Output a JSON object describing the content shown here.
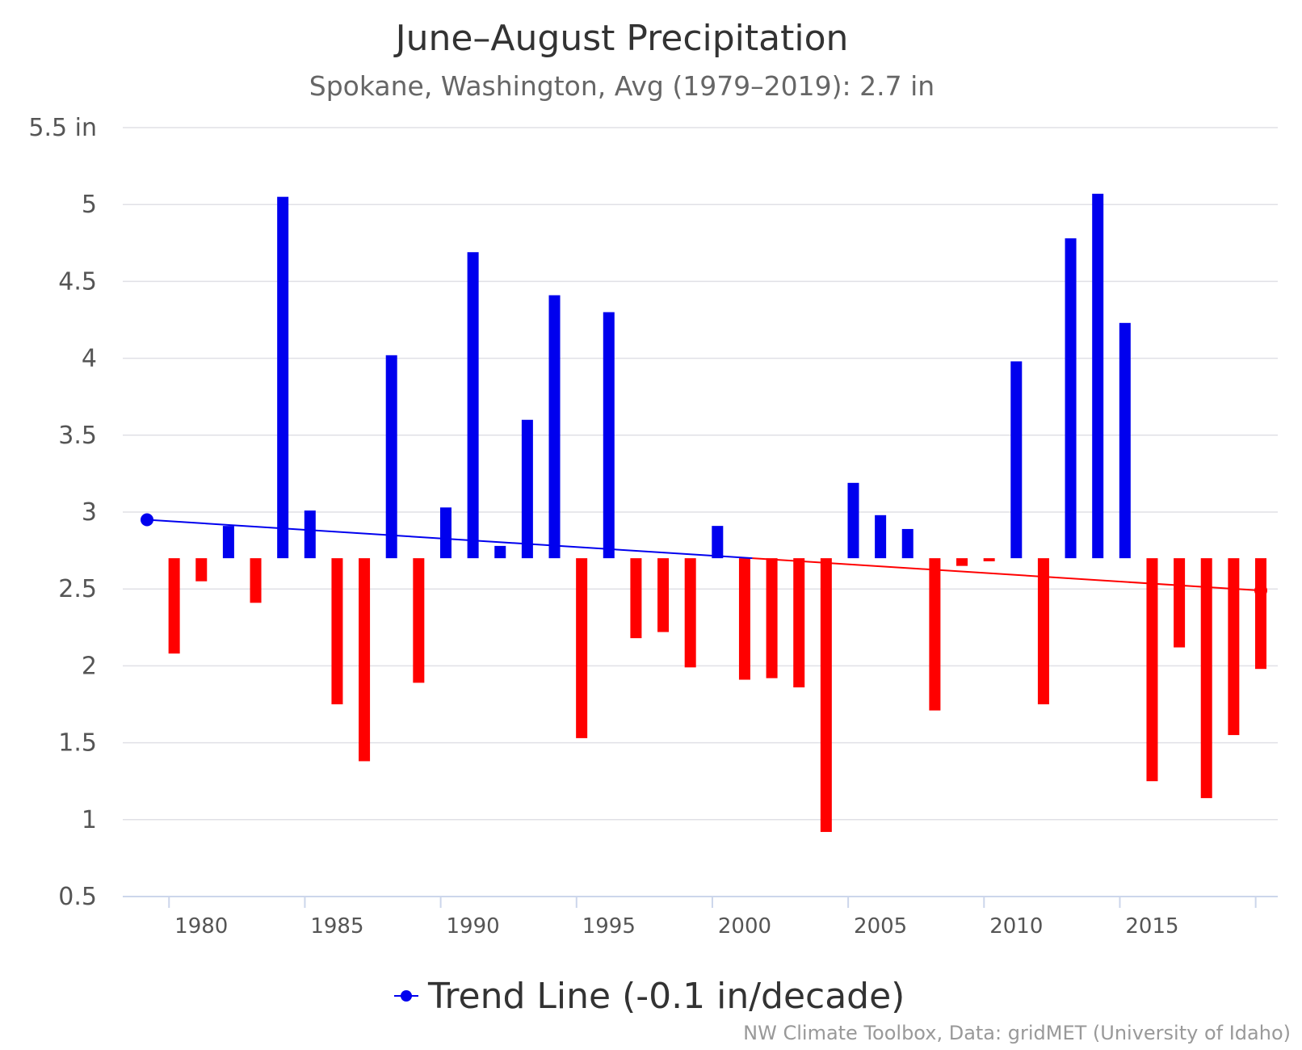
{
  "chart_data": {
    "type": "bar",
    "title": "June–August Precipitation",
    "subtitle": "Spokane, Washington, Avg (1979–2019): 2.7 in",
    "baseline": 2.7,
    "ylim": [
      0.5,
      5.5
    ],
    "yticks": [
      {
        "value": 5.5,
        "label": "5.5 in"
      },
      {
        "value": 5,
        "label": "5"
      },
      {
        "value": 4.5,
        "label": "4.5"
      },
      {
        "value": 4,
        "label": "4"
      },
      {
        "value": 3.5,
        "label": "3.5"
      },
      {
        "value": 3,
        "label": "3"
      },
      {
        "value": 2.5,
        "label": "2.5"
      },
      {
        "value": 2,
        "label": "2"
      },
      {
        "value": 1.5,
        "label": "1.5"
      },
      {
        "value": 1,
        "label": "1"
      },
      {
        "value": 0.5,
        "label": "0.5"
      }
    ],
    "xlim": [
      1978,
      2019
    ],
    "xticks": [
      1980,
      1985,
      1990,
      1995,
      2000,
      2005,
      2010,
      2015
    ],
    "grid": true,
    "colors": {
      "above": "#0000ee",
      "below": "#ff0000",
      "grid": "#e0e0e6",
      "axis": "#ccd6eb"
    },
    "series": [
      {
        "type": "bar",
        "x": [
          1979,
          1980,
          1981,
          1982,
          1983,
          1984,
          1985,
          1986,
          1987,
          1988,
          1989,
          1990,
          1991,
          1992,
          1993,
          1994,
          1995,
          1996,
          1997,
          1998,
          1999,
          2000,
          2001,
          2002,
          2003,
          2004,
          2005,
          2006,
          2007,
          2008,
          2009,
          2010,
          2011,
          2012,
          2013,
          2014,
          2015,
          2016,
          2017,
          2018,
          2019
        ],
        "values": [
          2.08,
          2.55,
          2.91,
          2.41,
          5.05,
          3.01,
          1.75,
          1.38,
          4.02,
          1.89,
          3.03,
          4.69,
          2.78,
          3.6,
          4.41,
          1.53,
          4.3,
          2.18,
          2.22,
          1.99,
          2.91,
          1.91,
          1.92,
          1.86,
          0.92,
          3.19,
          2.98,
          2.89,
          1.71,
          2.65,
          2.68,
          3.98,
          1.75,
          4.78,
          5.07,
          4.23,
          1.25,
          2.12,
          1.14,
          1.55,
          1.98
        ]
      },
      {
        "type": "line",
        "name": "Trend Line (-0.1 in/decade)",
        "x": [
          1978,
          2019
        ],
        "values": [
          2.95,
          2.49
        ]
      }
    ],
    "legend": "bottom-center"
  },
  "credit": "NW Climate Toolbox, Data: gridMET (University of Idaho)"
}
